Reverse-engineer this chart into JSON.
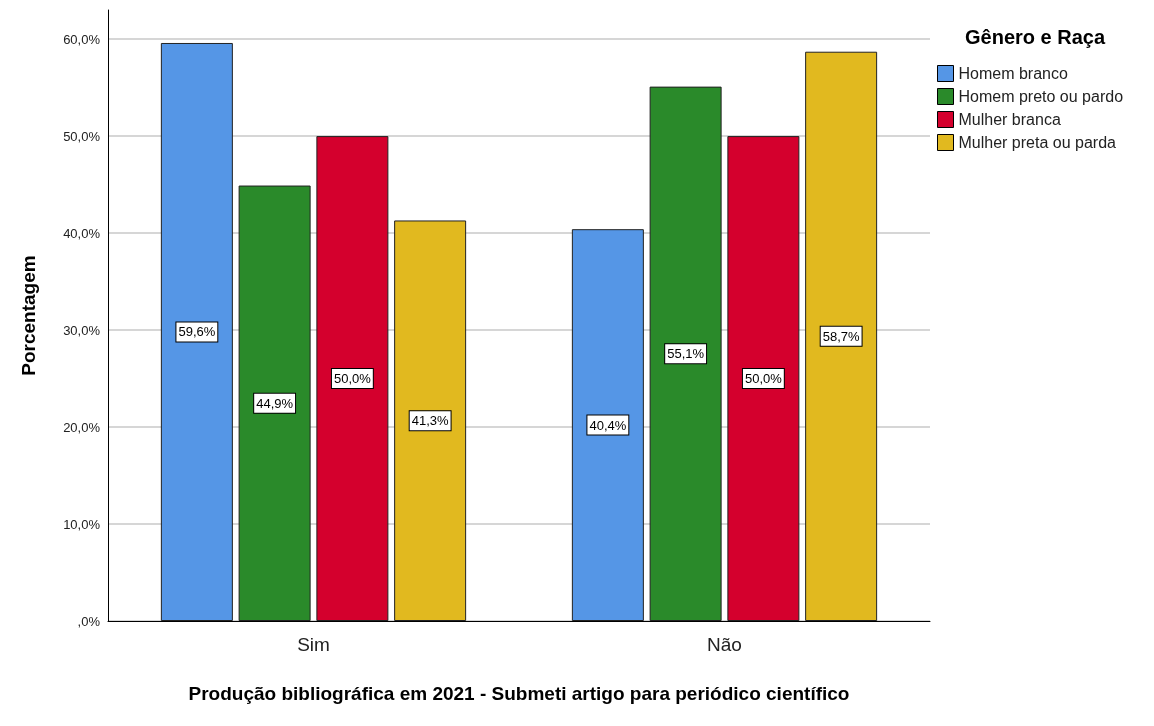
{
  "chart_data": {
    "type": "bar",
    "xlabel": "Produção bibliográfica em 2021 - Submeti artigo para periódico científico",
    "ylabel": "Porcentagem",
    "legend_title": "Gênero e Raça",
    "categories": [
      "Sim",
      "Não"
    ],
    "series": [
      {
        "name": "Homem branco",
        "color": "#5596e6",
        "values": [
          59.6,
          40.4
        ],
        "value_labels": [
          "59,6%",
          "40,4%"
        ]
      },
      {
        "name": "Homem preto ou pardo",
        "color": "#2a8a2a",
        "values": [
          44.9,
          55.1
        ],
        "value_labels": [
          "44,9%",
          "55,1%"
        ]
      },
      {
        "name": "Mulher branca",
        "color": "#d4002d",
        "values": [
          50.0,
          50.0
        ],
        "value_labels": [
          "50,0%",
          "50,0%"
        ]
      },
      {
        "name": "Mulher preta ou parda",
        "color": "#e1b91f",
        "values": [
          41.3,
          58.7
        ],
        "value_labels": [
          "41,3%",
          "58,7%"
        ]
      }
    ],
    "ylim": [
      0,
      63
    ],
    "yticks": [
      {
        "value": 0,
        "label": ",0%"
      },
      {
        "value": 10,
        "label": "10,0%"
      },
      {
        "value": 20,
        "label": "20,0%"
      },
      {
        "value": 30,
        "label": "30,0%"
      },
      {
        "value": 40,
        "label": "40,0%"
      },
      {
        "value": 50,
        "label": "50,0%"
      },
      {
        "value": 60,
        "label": "60,0%"
      }
    ],
    "grid": "y",
    "legend": "top right"
  }
}
